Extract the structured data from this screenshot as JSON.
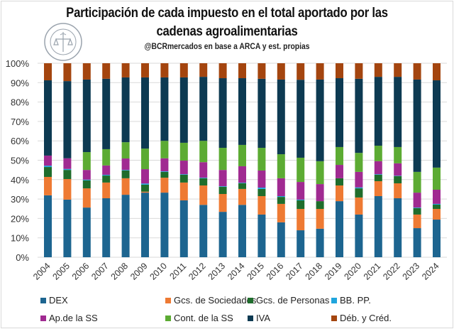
{
  "header": {
    "title_line1": "Participación de cada impuesto en el total aportado por las",
    "title_line2": "cadenas agroalimentarias",
    "subtitle": "@BCRmercados  en base a ARCA y est. propias",
    "logo_text": "BOLSA DE COMERCIO DE ROSARIO"
  },
  "chart_data": {
    "type": "bar",
    "stacked": true,
    "percent_stacked": true,
    "title": "Participación de cada impuesto en el total aportado por las cadenas agroalimentarias",
    "subtitle": "@BCRmercados en base a ARCA y est. propias",
    "xlabel": "",
    "ylabel": "",
    "ylim": [
      0,
      100
    ],
    "yticks": [
      "0%",
      "10%",
      "20%",
      "30%",
      "40%",
      "50%",
      "60%",
      "70%",
      "80%",
      "90%",
      "100%"
    ],
    "grid": true,
    "legend_position": "bottom",
    "categories": [
      "2004",
      "2005",
      "2006",
      "2007",
      "2008",
      "2009",
      "2010",
      "2011",
      "2012",
      "2013",
      "2014",
      "2015",
      "2016",
      "2017",
      "2018",
      "2019",
      "2020",
      "2021",
      "2022",
      "2023",
      "2024"
    ],
    "series": [
      {
        "name": "DEX",
        "color": "#1d6590",
        "values": [
          31.9,
          29.7,
          25.6,
          30.4,
          32.2,
          33.3,
          33.3,
          29.3,
          27.0,
          23.4,
          27.0,
          22.0,
          18.0,
          13.9,
          14.7,
          28.9,
          22.0,
          31.5,
          30.4,
          15.0,
          19.4
        ]
      },
      {
        "name": "Gcs. de Sociedades",
        "color": "#ee7a33",
        "values": [
          9.5,
          10.6,
          9.9,
          8.1,
          8.5,
          0.5,
          7.7,
          9.2,
          10.0,
          9.2,
          8.2,
          9.5,
          9.5,
          11.0,
          10.2,
          8.1,
          8.8,
          7.7,
          7.7,
          7.0,
          5.5
        ]
      },
      {
        "name": "Gcs. de Personas",
        "color": "#1f6d2c",
        "values": [
          5.1,
          4.7,
          4.1,
          3.6,
          4.0,
          3.6,
          3.0,
          4.0,
          3.7,
          3.7,
          2.9,
          3.7,
          3.6,
          4.4,
          4.0,
          3.7,
          4.7,
          3.3,
          3.7,
          3.3,
          2.2
        ]
      },
      {
        "name": "BB. PP.",
        "color": "#1fa5dd",
        "values": [
          0.7,
          0.5,
          0.4,
          0.4,
          0.3,
          0.6,
          0.3,
          0.3,
          0.3,
          0.3,
          0.3,
          0.7,
          0.4,
          0.4,
          0.0,
          0.0,
          0.5,
          0.3,
          0.2,
          0.3,
          0.4
        ]
      },
      {
        "name": "Ap.de la SS",
        "color": "#a02a91",
        "values": [
          5.2,
          5.5,
          5.0,
          4.8,
          5.9,
          7.4,
          6.7,
          7.0,
          8.0,
          8.4,
          8.5,
          8.8,
          9.2,
          9.1,
          8.8,
          6.9,
          8.0,
          6.7,
          6.4,
          7.7,
          7.3
        ]
      },
      {
        "name": "Cont. de la SS",
        "color": "#5cab33",
        "values": [
          0.0,
          0.0,
          9.2,
          8.4,
          8.4,
          10.6,
          9.0,
          9.2,
          11.0,
          11.4,
          11.0,
          11.7,
          12.4,
          12.5,
          11.8,
          9.2,
          9.8,
          8.0,
          8.4,
          10.7,
          11.4
        ]
      },
      {
        "name": "IVA",
        "color": "#0d3a52",
        "values": [
          38.8,
          39.8,
          37.4,
          36.3,
          33.4,
          36.7,
          32.7,
          33.7,
          33.0,
          35.9,
          34.4,
          35.6,
          38.5,
          40.2,
          42.1,
          35.5,
          38.2,
          35.5,
          36.2,
          47.6,
          45.0
        ]
      },
      {
        "name": "Déb. y Créd.",
        "color": "#a4450f",
        "values": [
          8.8,
          9.2,
          8.4,
          8.0,
          7.3,
          7.3,
          7.3,
          7.3,
          7.0,
          7.7,
          7.7,
          8.0,
          8.4,
          8.5,
          8.4,
          7.7,
          8.0,
          7.0,
          7.0,
          8.4,
          8.8
        ]
      }
    ]
  },
  "colors": {
    "gridline": "#d9d9d9",
    "axis_text": "#333333",
    "frame_border": "#d9d9d9"
  }
}
